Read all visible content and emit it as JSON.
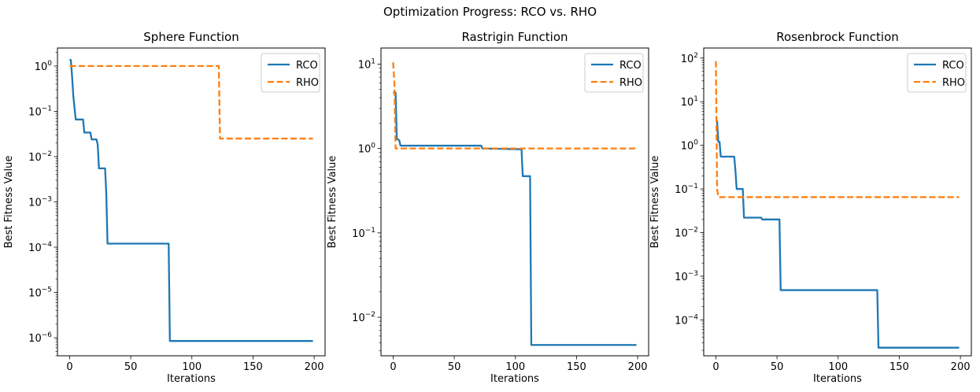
{
  "figure": {
    "title": "Optimization Progress: RCO vs. RHO"
  },
  "colors": {
    "RCO": "#1f77b4",
    "RHO": "#ff7f0e"
  },
  "chart_data": [
    {
      "type": "line",
      "title": "Sphere Function",
      "xlabel": "Iterations",
      "ylabel": "Best Fitness Value",
      "yscale": "log",
      "xlim": [
        -9.95,
        208.95
      ],
      "ylim": [
        4e-07,
        2.5
      ],
      "xticks": [
        0,
        50,
        100,
        150,
        200
      ],
      "yticks": [
        1e-06,
        1e-05,
        0.0001,
        0.001,
        0.01,
        0.1,
        1
      ],
      "ytick_labels": [
        {
          "base": "10",
          "exp": "−6"
        },
        {
          "base": "10",
          "exp": "−5"
        },
        {
          "base": "10",
          "exp": "−4"
        },
        {
          "base": "10",
          "exp": "−3"
        },
        {
          "base": "10",
          "exp": "−2"
        },
        {
          "base": "10",
          "exp": "−1"
        },
        {
          "base": "10",
          "exp": "0"
        }
      ],
      "legend": "top-right",
      "series": [
        {
          "name": "RCO",
          "style": "solid",
          "points": [
            [
              0,
              1.4
            ],
            [
              1,
              1.35
            ],
            [
              2,
              0.6
            ],
            [
              3,
              0.22
            ],
            [
              4,
              0.12
            ],
            [
              5,
              0.066
            ],
            [
              11,
              0.066
            ],
            [
              12,
              0.034
            ],
            [
              17,
              0.034
            ],
            [
              18,
              0.024
            ],
            [
              22,
              0.024
            ],
            [
              23,
              0.018
            ],
            [
              24,
              0.0055
            ],
            [
              29,
              0.0055
            ],
            [
              30,
              0.0015
            ],
            [
              31,
              0.00012
            ],
            [
              81,
              0.00012
            ],
            [
              82,
              8.5e-07
            ],
            [
              199,
              8.5e-07
            ]
          ]
        },
        {
          "name": "RHO",
          "style": "dashed",
          "points": [
            [
              0,
              1.0
            ],
            [
              122,
              1.0
            ],
            [
              123,
              0.025
            ],
            [
              199,
              0.025
            ]
          ]
        }
      ]
    },
    {
      "type": "line",
      "title": "Rastrigin Function",
      "xlabel": "Iterations",
      "ylabel": "Best Fitness Value",
      "yscale": "log",
      "xlim": [
        -9.95,
        208.95
      ],
      "ylim": [
        0.0035,
        15.5
      ],
      "xticks": [
        0,
        50,
        100,
        150,
        200
      ],
      "yticks": [
        0.01,
        0.1,
        1,
        10
      ],
      "ytick_labels": [
        {
          "base": "10",
          "exp": "−2"
        },
        {
          "base": "10",
          "exp": "−1"
        },
        {
          "base": "10",
          "exp": "0"
        },
        {
          "base": "10",
          "exp": "1"
        }
      ],
      "legend": "top-right",
      "series": [
        {
          "name": "RCO",
          "style": "solid",
          "points": [
            [
              0,
              4.6
            ],
            [
              2,
              4.6
            ],
            [
              3,
              1.3
            ],
            [
              5,
              1.25
            ],
            [
              6,
              1.08
            ],
            [
              72,
              1.08
            ],
            [
              73,
              1.0
            ],
            [
              104,
              0.98
            ],
            [
              105,
              0.98
            ],
            [
              106,
              0.47
            ],
            [
              112,
              0.47
            ],
            [
              113,
              0.0047
            ],
            [
              199,
              0.0047
            ]
          ]
        },
        {
          "name": "RHO",
          "style": "dashed",
          "points": [
            [
              0,
              10.5
            ],
            [
              1,
              6.0
            ],
            [
              2,
              1.0
            ],
            [
              199,
              1.0
            ]
          ]
        }
      ]
    },
    {
      "type": "line",
      "title": "Rosenbrock Function",
      "xlabel": "Iterations",
      "ylabel": "Best Fitness Value",
      "yscale": "log",
      "xlim": [
        -9.95,
        208.95
      ],
      "ylim": [
        1.5e-05,
        170
      ],
      "xticks": [
        0,
        50,
        100,
        150,
        200
      ],
      "yticks": [
        0.0001,
        0.001,
        0.01,
        0.1,
        1,
        10,
        100
      ],
      "ytick_labels": [
        {
          "base": "10",
          "exp": "−4"
        },
        {
          "base": "10",
          "exp": "−3"
        },
        {
          "base": "10",
          "exp": "−2"
        },
        {
          "base": "10",
          "exp": "−1"
        },
        {
          "base": "10",
          "exp": "0"
        },
        {
          "base": "10",
          "exp": "1"
        },
        {
          "base": "10",
          "exp": "2"
        }
      ],
      "legend": "top-right",
      "series": [
        {
          "name": "RCO",
          "style": "solid",
          "points": [
            [
              0,
              3.6
            ],
            [
              1,
              3.6
            ],
            [
              2,
              1.2
            ],
            [
              3,
              1.2
            ],
            [
              4,
              0.55
            ],
            [
              15,
              0.55
            ],
            [
              16,
              0.26
            ],
            [
              17,
              0.1
            ],
            [
              22,
              0.1
            ],
            [
              23,
              0.022
            ],
            [
              37,
              0.022
            ],
            [
              38,
              0.02
            ],
            [
              52,
              0.02
            ],
            [
              53,
              0.00048
            ],
            [
              132,
              0.00048
            ],
            [
              133,
              2.3e-05
            ],
            [
              199,
              2.3e-05
            ]
          ]
        },
        {
          "name": "RHO",
          "style": "dashed",
          "points": [
            [
              0,
              85
            ],
            [
              1,
              0.1
            ],
            [
              2,
              0.065
            ],
            [
              199,
              0.065
            ]
          ]
        }
      ]
    }
  ]
}
